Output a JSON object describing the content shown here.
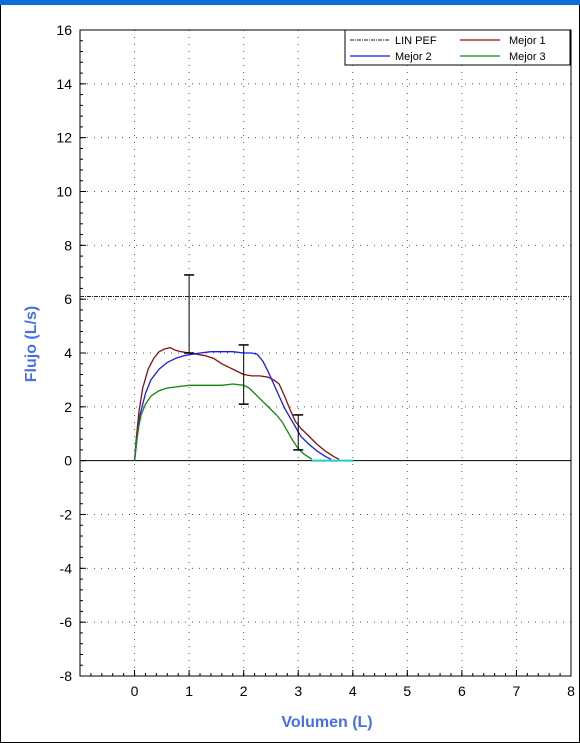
{
  "chart_data": {
    "type": "line",
    "xlabel": "Volumen (L)",
    "ylabel": "Flujo (L/s)",
    "xlim": [
      -1,
      8
    ],
    "ylim": [
      -8,
      16
    ],
    "x_ticks": [
      0,
      1,
      2,
      3,
      4,
      5,
      6,
      7,
      8
    ],
    "y_ticks": [
      -8,
      -6,
      -4,
      -2,
      0,
      2,
      4,
      6,
      8,
      10,
      12,
      14,
      16
    ],
    "grid": true,
    "legend_position": "top-right",
    "legend": [
      "LIN PEF",
      "Mejor 1",
      "Mejor 2",
      "Mejor 3"
    ],
    "reference_line": {
      "name": "LIN PEF",
      "y": 6.1,
      "color": "#222222"
    },
    "series": [
      {
        "name": "Mejor 1",
        "color": "#8b1010",
        "points": [
          [
            0,
            0
          ],
          [
            0.03,
            0.8
          ],
          [
            0.08,
            1.8
          ],
          [
            0.15,
            2.7
          ],
          [
            0.25,
            3.4
          ],
          [
            0.35,
            3.8
          ],
          [
            0.45,
            4.05
          ],
          [
            0.55,
            4.15
          ],
          [
            0.65,
            4.2
          ],
          [
            0.75,
            4.1
          ],
          [
            0.85,
            4.05
          ],
          [
            1.0,
            4.0
          ],
          [
            1.15,
            3.95
          ],
          [
            1.3,
            3.9
          ],
          [
            1.45,
            3.8
          ],
          [
            1.6,
            3.6
          ],
          [
            1.75,
            3.45
          ],
          [
            1.85,
            3.35
          ],
          [
            2.0,
            3.2
          ],
          [
            2.15,
            3.15
          ],
          [
            2.3,
            3.15
          ],
          [
            2.45,
            3.1
          ],
          [
            2.55,
            3.0
          ],
          [
            2.65,
            2.85
          ],
          [
            2.75,
            2.4
          ],
          [
            2.85,
            1.9
          ],
          [
            2.95,
            1.45
          ],
          [
            3.05,
            1.2
          ],
          [
            3.2,
            0.9
          ],
          [
            3.35,
            0.6
          ],
          [
            3.5,
            0.35
          ],
          [
            3.65,
            0.15
          ],
          [
            3.75,
            0.05
          ]
        ]
      },
      {
        "name": "Mejor 2",
        "color": "#1a1aee",
        "points": [
          [
            0,
            0
          ],
          [
            0.05,
            0.9
          ],
          [
            0.1,
            1.7
          ],
          [
            0.2,
            2.5
          ],
          [
            0.3,
            3.0
          ],
          [
            0.45,
            3.4
          ],
          [
            0.6,
            3.65
          ],
          [
            0.75,
            3.8
          ],
          [
            0.9,
            3.9
          ],
          [
            1.05,
            3.95
          ],
          [
            1.2,
            4.0
          ],
          [
            1.4,
            4.05
          ],
          [
            1.6,
            4.05
          ],
          [
            1.8,
            4.05
          ],
          [
            2.0,
            4.0
          ],
          [
            2.15,
            4.0
          ],
          [
            2.25,
            3.95
          ],
          [
            2.35,
            3.7
          ],
          [
            2.45,
            3.3
          ],
          [
            2.55,
            2.85
          ],
          [
            2.65,
            2.4
          ],
          [
            2.75,
            1.95
          ],
          [
            2.85,
            1.6
          ],
          [
            2.95,
            1.25
          ],
          [
            3.05,
            0.9
          ],
          [
            3.2,
            0.6
          ],
          [
            3.35,
            0.35
          ],
          [
            3.5,
            0.15
          ],
          [
            3.6,
            0.05
          ]
        ]
      },
      {
        "name": "Mejor 3",
        "color": "#118811",
        "points": [
          [
            0,
            0
          ],
          [
            0.03,
            0.6
          ],
          [
            0.07,
            1.2
          ],
          [
            0.12,
            1.7
          ],
          [
            0.2,
            2.1
          ],
          [
            0.3,
            2.4
          ],
          [
            0.45,
            2.6
          ],
          [
            0.6,
            2.7
          ],
          [
            0.8,
            2.75
          ],
          [
            1.0,
            2.8
          ],
          [
            1.2,
            2.8
          ],
          [
            1.4,
            2.8
          ],
          [
            1.6,
            2.8
          ],
          [
            1.8,
            2.85
          ],
          [
            2.0,
            2.8
          ],
          [
            2.1,
            2.7
          ],
          [
            2.2,
            2.5
          ],
          [
            2.3,
            2.3
          ],
          [
            2.4,
            2.1
          ],
          [
            2.5,
            1.9
          ],
          [
            2.6,
            1.7
          ],
          [
            2.7,
            1.45
          ],
          [
            2.8,
            1.1
          ],
          [
            2.9,
            0.75
          ],
          [
            3.0,
            0.45
          ],
          [
            3.1,
            0.25
          ],
          [
            3.25,
            0.05
          ]
        ]
      }
    ],
    "error_bars": [
      {
        "x": 1.0,
        "low": 4.0,
        "high": 6.9
      },
      {
        "x": 2.0,
        "low": 2.1,
        "high": 4.3
      },
      {
        "x": 3.0,
        "low": 0.4,
        "high": 1.7
      }
    ],
    "baseline_segment": {
      "x_start": 3.25,
      "x_end": 4.0,
      "y": 0,
      "color": "#22cccc"
    },
    "colors": {
      "axis_label": "#4a6ee8",
      "grid": "#555555",
      "frame_top": "#0a6fd6",
      "error_bar": "#000000"
    }
  }
}
